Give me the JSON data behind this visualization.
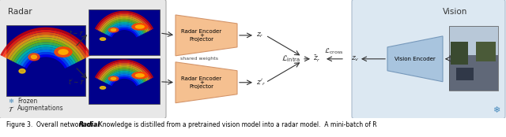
{
  "fig_width": 6.4,
  "fig_height": 1.74,
  "dpi": 100,
  "left_panel_bg": "#e8e8e8",
  "left_panel_edge": "#aaaaaa",
  "mid_panel_bg": "#ece8e0",
  "right_panel_bg": "#dce8f2",
  "right_panel_edge": "#aabbcc",
  "encoder_face": "#f5c090",
  "encoder_edge": "#d4956a",
  "vision_enc_face": "#a8c4de",
  "vision_enc_edge": "#7799bb",
  "radar_label": "Radar",
  "vision_label": "Vision",
  "frozen_label": "Frozen",
  "aug_label": "Augmentations",
  "shared_weights": "shared weights",
  "enc_text1": "Radar Encoder",
  "enc_text2": "+",
  "enc_text3": "Projector",
  "vis_enc_text": "Vision Encoder",
  "caption_prefix": "Figure 3.  Overall network of ",
  "caption_bold": "Radial",
  "caption_suffix": ". Knowledge is distilled from a pretrained vision model into a radar model.  A mini-batch of R"
}
